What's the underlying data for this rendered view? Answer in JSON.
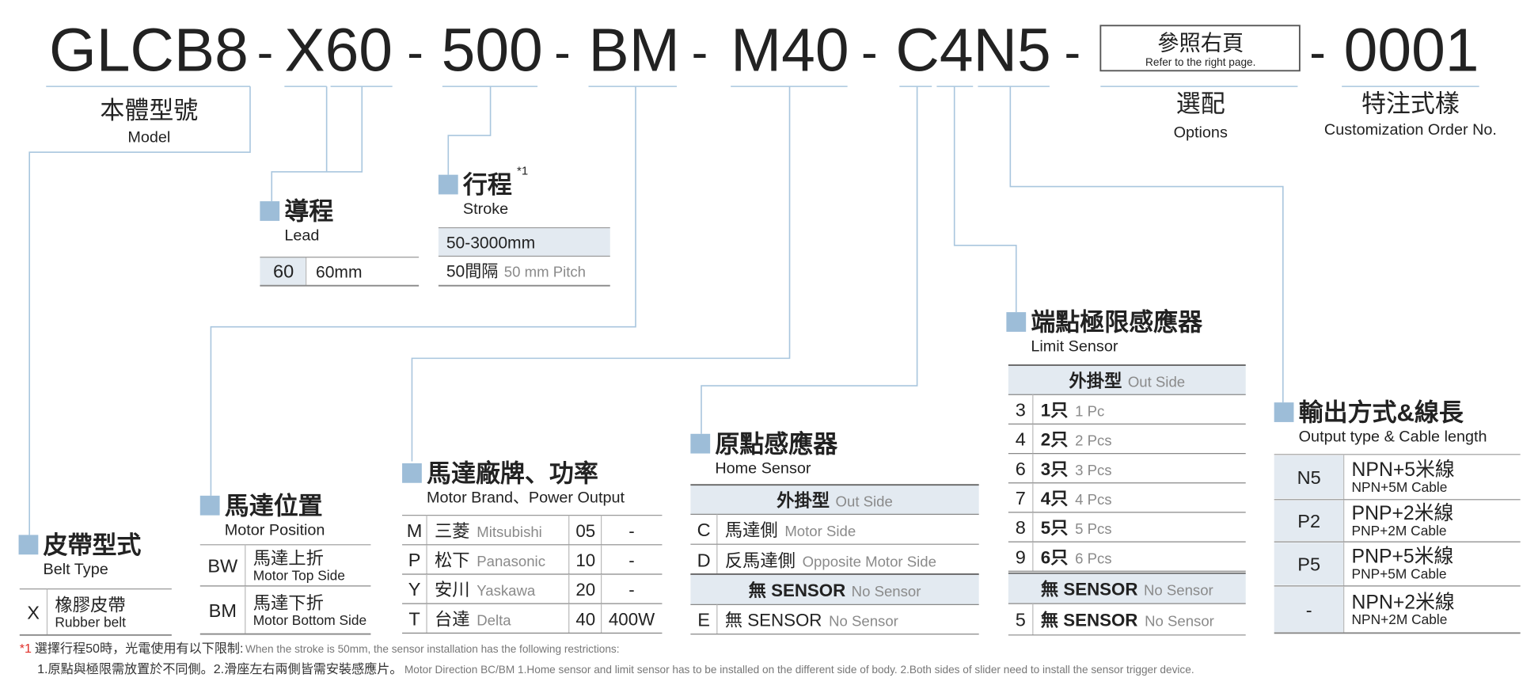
{
  "code": {
    "parts": [
      "GLCB8",
      "X60",
      "500",
      "BM",
      "M40",
      "C4N5",
      "0001"
    ],
    "separator": "-",
    "options_box": {
      "title": "參照右頁",
      "subtitle": "Refer to the right page."
    }
  },
  "labels": {
    "model": {
      "title": "本體型號",
      "subtitle": "Model"
    },
    "options": {
      "title": "選配",
      "subtitle": "Options"
    },
    "custom": {
      "title": "特注式樣",
      "subtitle": "Customization Order No."
    }
  },
  "sections": {
    "lead": {
      "title": "導程",
      "subtitle": "Lead",
      "rows": [
        {
          "code": "60",
          "label": "60mm"
        }
      ]
    },
    "stroke": {
      "title": "行程",
      "note": "*1",
      "subtitle": "Stroke",
      "rows": [
        {
          "label": "50-3000mm"
        },
        {
          "label": "50間隔",
          "label_en": "50 mm Pitch"
        }
      ]
    },
    "belt_type": {
      "title": "皮帶型式",
      "subtitle": "Belt Type",
      "rows": [
        {
          "code": "X",
          "label": "橡膠皮帶",
          "label_en": "Rubber belt"
        }
      ]
    },
    "motor_position": {
      "title": "馬達位置",
      "subtitle": "Motor Position",
      "rows": [
        {
          "code": "BW",
          "label": "馬達上折",
          "label_en": "Motor Top Side"
        },
        {
          "code": "BM",
          "label": "馬達下折",
          "label_en": "Motor Bottom Side"
        }
      ]
    },
    "motor_brand": {
      "title": "馬達廠牌、功率",
      "subtitle": "Motor Brand、Power Output",
      "rows": [
        {
          "code": "M",
          "label": "三菱",
          "label_en": "Mitsubishi",
          "power_code": "05",
          "power": "-"
        },
        {
          "code": "P",
          "label": "松下",
          "label_en": "Panasonic",
          "power_code": "10",
          "power": "-"
        },
        {
          "code": "Y",
          "label": "安川",
          "label_en": "Yaskawa",
          "power_code": "20",
          "power": "-"
        },
        {
          "code": "T",
          "label": "台達",
          "label_en": "Delta",
          "power_code": "40",
          "power": "400W"
        }
      ]
    },
    "home_sensor": {
      "title": "原點感應器",
      "subtitle": "Home Sensor",
      "header": {
        "label": "外掛型",
        "label_en": "Out Side"
      },
      "rows": [
        {
          "code": "C",
          "label": "馬達側",
          "label_en": "Motor Side"
        },
        {
          "code": "D",
          "label": "反馬達側",
          "label_en": "Opposite Motor Side"
        }
      ],
      "no_sensor_header": {
        "label": "無 SENSOR",
        "label_en": "No Sensor"
      },
      "no_sensor_rows": [
        {
          "code": "E",
          "label": "無 SENSOR",
          "label_en": "No Sensor"
        }
      ]
    },
    "limit_sensor": {
      "title": "端點極限感應器",
      "subtitle": "Limit Sensor",
      "header": {
        "label": "外掛型",
        "label_en": "Out Side"
      },
      "rows": [
        {
          "code": "3",
          "label": "1只",
          "label_en": "1 Pc"
        },
        {
          "code": "4",
          "label": "2只",
          "label_en": "2 Pcs"
        },
        {
          "code": "6",
          "label": "3只",
          "label_en": "3 Pcs"
        },
        {
          "code": "7",
          "label": "4只",
          "label_en": "4 Pcs"
        },
        {
          "code": "8",
          "label": "5只",
          "label_en": "5 Pcs"
        },
        {
          "code": "9",
          "label": "6只",
          "label_en": "6 Pcs"
        }
      ],
      "no_sensor_header": {
        "label": "無 SENSOR",
        "label_en": "No Sensor"
      },
      "no_sensor_rows": [
        {
          "code": "5",
          "label": "無 SENSOR",
          "label_en": "No Sensor"
        }
      ]
    },
    "output": {
      "title": "輸出方式&線長",
      "subtitle": "Output type & Cable length",
      "rows": [
        {
          "code": "N5",
          "label": "NPN+5米線",
          "label_en": "NPN+5M Cable"
        },
        {
          "code": "P2",
          "label": "PNP+2米線",
          "label_en": "PNP+2M Cable"
        },
        {
          "code": "P5",
          "label": "PNP+5米線",
          "label_en": "PNP+5M Cable"
        },
        {
          "code": "-",
          "label": "NPN+2米線",
          "label_en": "NPN+2M Cable"
        }
      ]
    }
  },
  "footnote": {
    "mark": "*1",
    "line1": "選擇行程50時，光電使用有以下限制:",
    "line1_en": "When the stroke is 50mm, the sensor installation has  the following restrictions:",
    "line2": "1.原點與極限需放置於不同側。2.滑座左右兩側皆需安裝感應片。",
    "line2_en": "Motor Direction BC/BM 1.Home sensor and limit sensor has to be installed on the different side of body.  2.Both sides of slider need to install the sensor trigger device."
  }
}
